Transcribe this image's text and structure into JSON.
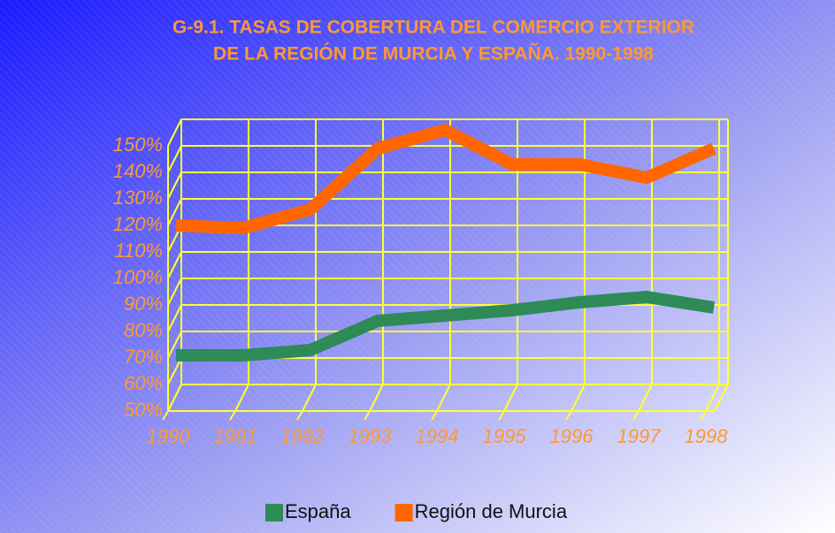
{
  "chart_data": {
    "type": "line",
    "title": "G-9.1. TASAS DE COBERTURA DEL COMERCIO EXTERIOR",
    "subtitle": "DE LA REGIÓN DE MURCIA Y ESPAÑA. 1990-1998",
    "categories": [
      "1990",
      "1991",
      "1992",
      "1993",
      "1994",
      "1995",
      "1996",
      "1997",
      "1998"
    ],
    "series": [
      {
        "name": "España",
        "color": "#2e8b57",
        "values": [
          65,
          65,
          67,
          78,
          80,
          82,
          85,
          87,
          83
        ]
      },
      {
        "name": "Región de Murcia",
        "color": "#ff6600",
        "values": [
          114,
          113,
          120,
          143,
          150,
          137,
          137,
          132,
          143
        ]
      }
    ],
    "ylim": [
      50,
      150
    ],
    "yticks": [
      {
        "value": 50,
        "label": "50%"
      },
      {
        "value": 60,
        "label": "60%"
      },
      {
        "value": 70,
        "label": "70%"
      },
      {
        "value": 80,
        "label": "80%"
      },
      {
        "value": 90,
        "label": "90%"
      },
      {
        "value": 100,
        "label": "100%"
      },
      {
        "value": 110,
        "label": "110%"
      },
      {
        "value": 120,
        "label": "120%"
      },
      {
        "value": 130,
        "label": "130%"
      },
      {
        "value": 140,
        "label": "140%"
      },
      {
        "value": 150,
        "label": "150%"
      }
    ],
    "grid": true,
    "grid_color": "#ffff33",
    "label_color": "#ff9933",
    "legend": "bottom"
  }
}
